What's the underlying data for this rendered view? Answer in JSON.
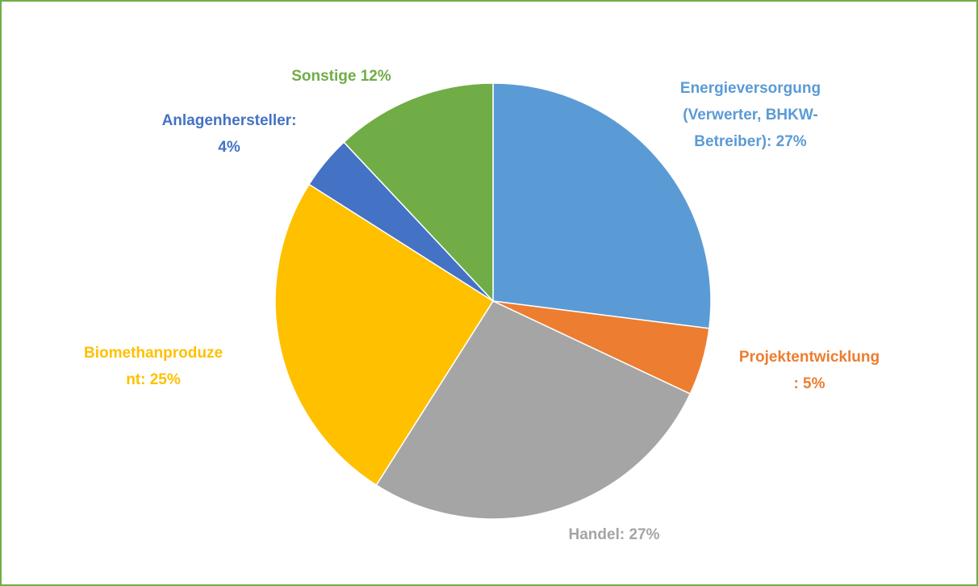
{
  "chart_data": {
    "type": "pie",
    "data_labels": [
      [
        "Energieversorgung",
        "(Verwerter, BHKW-",
        "Betreiber): 27%"
      ],
      [
        "Projektentwicklung",
        ": 5%"
      ],
      [
        "Handel: 27%"
      ],
      [
        "Biomethanproduze",
        "nt: 25%"
      ],
      [
        "Anlagenhersteller:",
        "4%"
      ],
      [
        "Sonstige 12%"
      ]
    ],
    "values": [
      27,
      5,
      27,
      25,
      4,
      12
    ],
    "colors": [
      "#5b9bd5",
      "#ed7d31",
      "#a5a5a5",
      "#ffc000",
      "#4472c4",
      "#70ad47"
    ]
  }
}
